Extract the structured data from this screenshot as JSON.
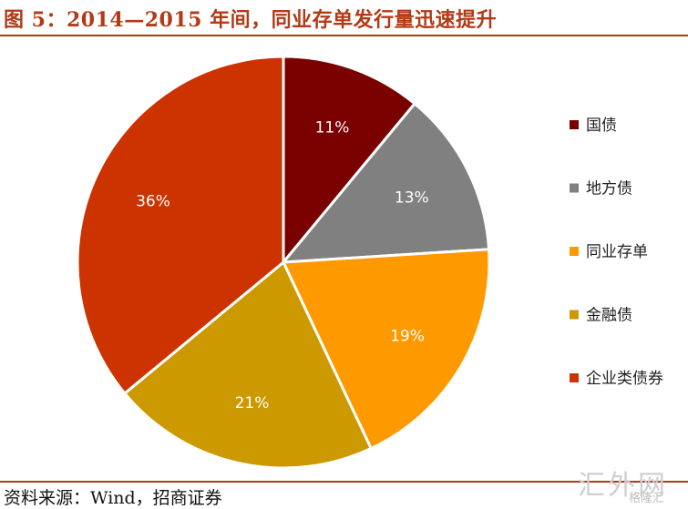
{
  "title": "图 5：2014—2015 年间，同业存单发行量迅速提升",
  "source": "资料来源：Wind，招商证券",
  "watermark": {
    "main": "汇外网",
    "sub": "格隆汇"
  },
  "chart_data": {
    "type": "pie",
    "title": "",
    "categories": [
      "国债",
      "地方债",
      "同业存单",
      "金融债",
      "企业类债券"
    ],
    "values": [
      11,
      13,
      19,
      21,
      36
    ],
    "labels": [
      "11%",
      "13%",
      "19%",
      "21%",
      "36%"
    ],
    "colors": [
      "#7b0000",
      "#808080",
      "#ff9900",
      "#cc9900",
      "#cc3300"
    ],
    "start_angle_deg": 0,
    "direction": "clockwise",
    "legend_position": "right"
  }
}
